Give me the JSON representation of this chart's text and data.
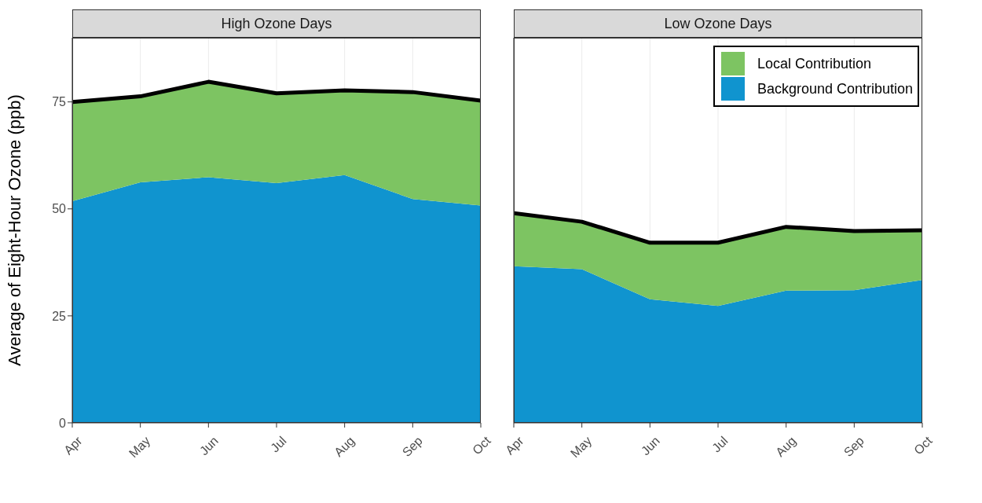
{
  "chart_data": [
    {
      "type": "area",
      "title": "High Ozone Days",
      "ylabel": "Average of Eight-Hour Ozone (ppb)",
      "stacked": true,
      "categories": [
        "Apr",
        "May",
        "Jun",
        "Jul",
        "Aug",
        "Sep",
        "Oct"
      ],
      "ylim": [
        0,
        90
      ],
      "yticks": [
        0,
        25,
        50,
        75
      ],
      "grid": true,
      "legend": false,
      "series": [
        {
          "color": "#1094cf",
          "values": [
            51.8,
            56.2,
            57.4,
            56.0,
            57.9,
            52.3,
            50.8
          ]
        },
        {
          "color": "#7dc462",
          "values": [
            23.2,
            20.1,
            22.3,
            21.0,
            19.8,
            25.0,
            24.5
          ]
        }
      ]
    },
    {
      "type": "area",
      "title": "Low Ozone Days",
      "stacked": true,
      "categories": [
        "Apr",
        "May",
        "Jun",
        "Jul",
        "Aug",
        "Sep",
        "Oct"
      ],
      "ylim": [
        0,
        90
      ],
      "yticks": [
        0,
        25,
        50,
        75
      ],
      "grid": true,
      "legend": "top right",
      "tick_labels": "x",
      "series": [
        {
          "name": "Background Contribution",
          "color": "#1094cf",
          "values": [
            36.6,
            35.9,
            28.9,
            27.3,
            30.9,
            31.0,
            33.4
          ]
        },
        {
          "name": "Local Contribution",
          "color": "#7dc462",
          "values": [
            12.4,
            11.1,
            13.2,
            14.8,
            14.9,
            13.8,
            11.6
          ]
        }
      ]
    }
  ]
}
